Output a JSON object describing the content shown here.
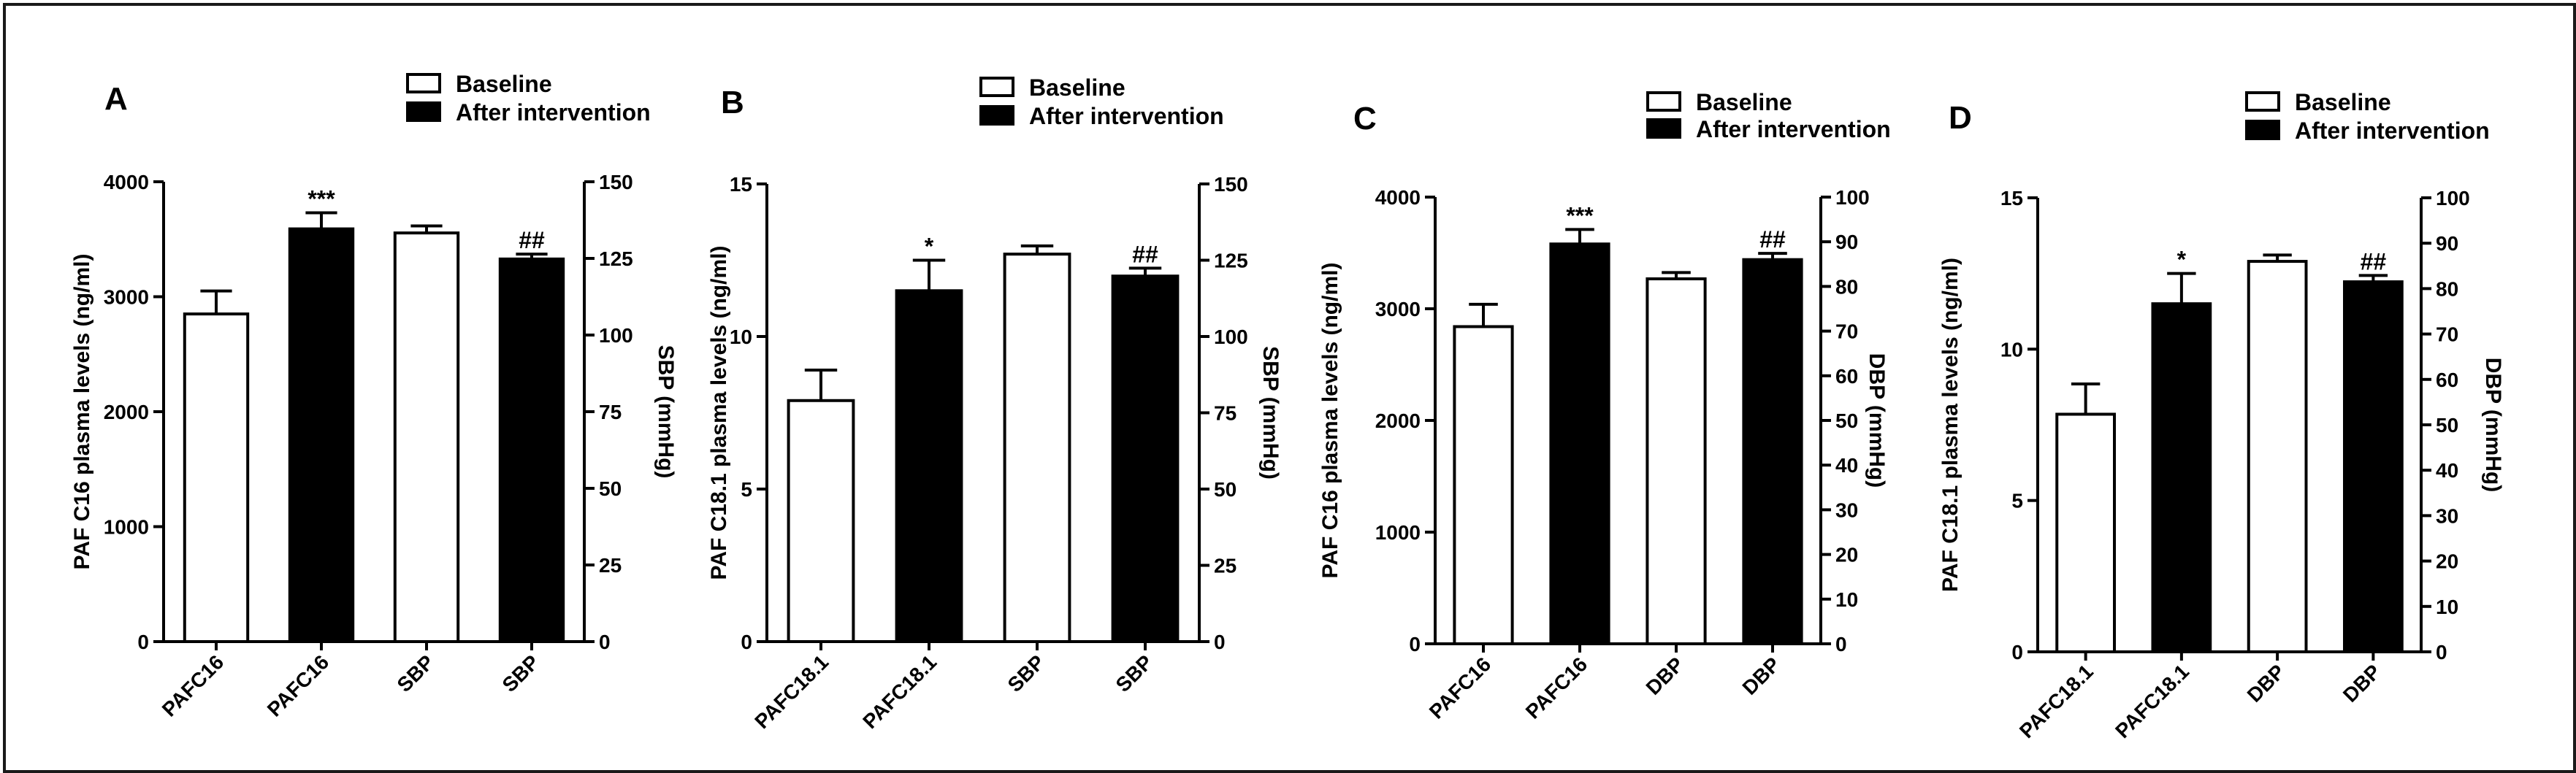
{
  "figure": {
    "colors": {
      "baseline_fill": "#ffffff",
      "after_fill": "#000000",
      "stroke": "#000000",
      "frame": "#1a1a1a"
    }
  },
  "chart_data": [
    {
      "panel": "A",
      "type": "bar",
      "legend": [
        "Baseline",
        "After intervention"
      ],
      "legend_position": "top-right",
      "categories": [
        "PAFC16",
        "PAFC16",
        "SBP",
        "SBP"
      ],
      "groups": [
        "Baseline",
        "After intervention",
        "Baseline",
        "After intervention"
      ],
      "axis": [
        "left",
        "left",
        "right",
        "right"
      ],
      "values": [
        2850,
        3590,
        133.3,
        124.8
      ],
      "errors": [
        200,
        140,
        2.3,
        1.6
      ],
      "annotations": [
        "",
        "***",
        "",
        "##"
      ],
      "ylabel": "PAF C16 plasma levels (ng/ml)",
      "ylim": [
        0,
        4000
      ],
      "yticks": [
        0,
        1000,
        2000,
        3000,
        4000
      ],
      "y2label": "SBP (mmHg)",
      "y2lim": [
        0,
        150
      ],
      "y2ticks": [
        0,
        25,
        50,
        75,
        100,
        125,
        150
      ]
    },
    {
      "panel": "B",
      "type": "bar",
      "legend": [
        "Baseline",
        "After intervention"
      ],
      "legend_position": "top-right",
      "categories": [
        "PAFC18.1",
        "PAFC18.1",
        "SBP",
        "SBP"
      ],
      "groups": [
        "Baseline",
        "After intervention",
        "Baseline",
        "After intervention"
      ],
      "axis": [
        "left",
        "left",
        "right",
        "right"
      ],
      "values": [
        7.9,
        11.5,
        127,
        119.8
      ],
      "errors": [
        1.0,
        1.0,
        2.7,
        2.6
      ],
      "annotations": [
        "",
        "*",
        "",
        "##"
      ],
      "ylabel": "PAF C18.1 plasma levels (ng/ml)",
      "ylim": [
        0,
        15
      ],
      "yticks": [
        0,
        5,
        10,
        15
      ],
      "y2label": "SBP (mmHg)",
      "y2lim": [
        0,
        150
      ],
      "y2ticks": [
        0,
        25,
        50,
        75,
        100,
        125,
        150
      ]
    },
    {
      "panel": "C",
      "type": "bar",
      "legend": [
        "Baseline",
        "After intervention"
      ],
      "legend_position": "top-right",
      "categories": [
        "PAFC16",
        "PAFC16",
        "DBP",
        "DBP"
      ],
      "groups": [
        "Baseline",
        "After intervention",
        "Baseline",
        "After intervention"
      ],
      "axis": [
        "left",
        "left",
        "right",
        "right"
      ],
      "values": [
        2840,
        3580,
        81.7,
        86
      ],
      "errors": [
        200,
        130,
        1.4,
        1.4
      ],
      "annotations": [
        "",
        "***",
        "",
        "##"
      ],
      "ylabel": "PAF C16 plasma levels (ng/ml)",
      "ylim": [
        0,
        4000
      ],
      "yticks": [
        0,
        1000,
        2000,
        3000,
        4000
      ],
      "y2label": "DBP (mmHg)",
      "y2lim": [
        0,
        100
      ],
      "y2ticks": [
        0,
        10,
        20,
        30,
        40,
        50,
        60,
        70,
        80,
        90,
        100
      ]
    },
    {
      "panel": "D",
      "type": "bar",
      "legend": [
        "Baseline",
        "After intervention"
      ],
      "legend_position": "top-right",
      "categories": [
        "PAFC18.1",
        "PAFC18.1",
        "DBP",
        "DBP"
      ],
      "groups": [
        "Baseline",
        "After intervention",
        "Baseline",
        "After intervention"
      ],
      "axis": [
        "left",
        "left",
        "right",
        "right"
      ],
      "values": [
        7.85,
        11.5,
        86,
        81.5
      ],
      "errors": [
        1.0,
        1.0,
        1.4,
        1.4
      ],
      "annotations": [
        "",
        "*",
        "",
        "##"
      ],
      "ylabel": "PAF C18.1 plasma levels (ng/ml)",
      "ylim": [
        0,
        15
      ],
      "yticks": [
        0,
        5,
        10,
        15
      ],
      "y2label": "DBP (mmHg)",
      "y2lim": [
        0,
        100
      ],
      "y2ticks": [
        0,
        10,
        20,
        30,
        40,
        50,
        60,
        70,
        80,
        90,
        100
      ]
    }
  ]
}
